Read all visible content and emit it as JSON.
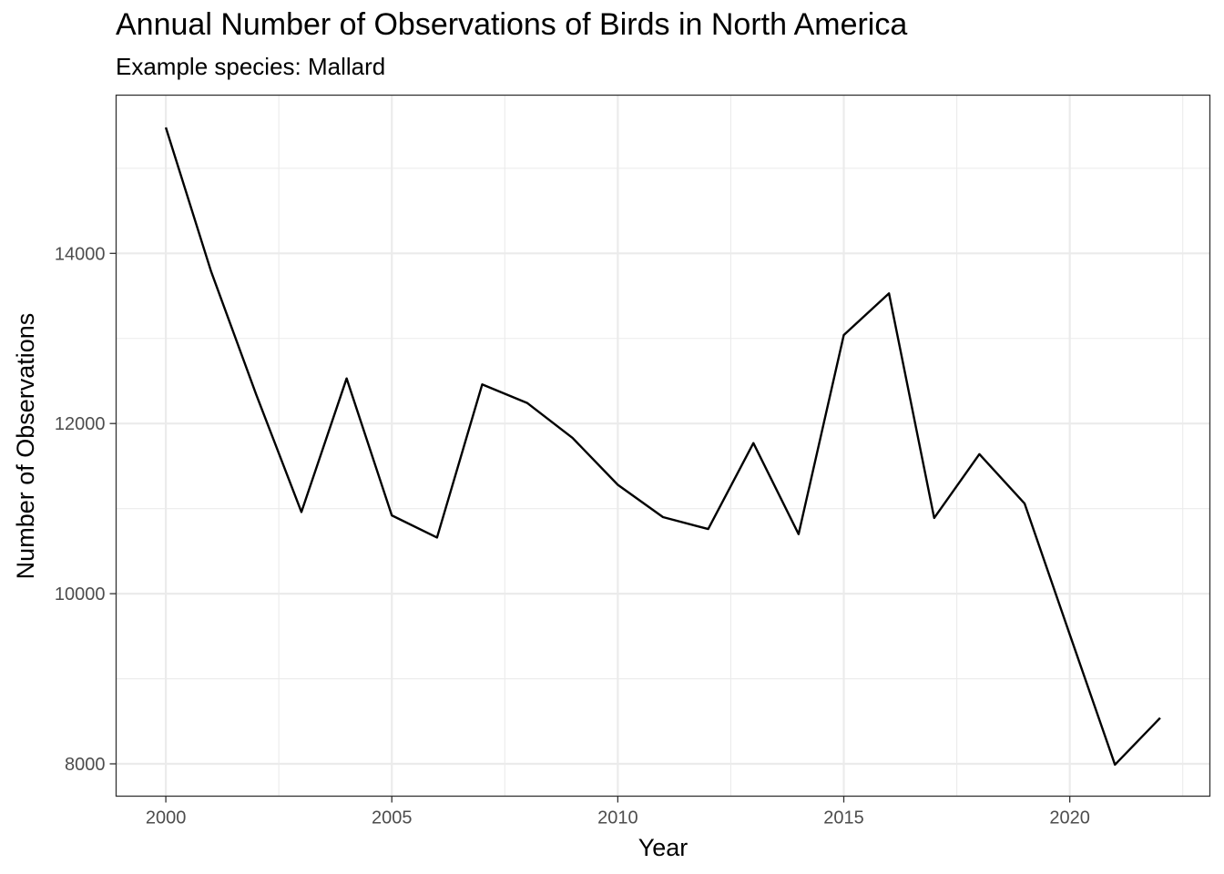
{
  "chart_data": {
    "type": "line",
    "title": "Annual Number of Observations of Birds in North America",
    "subtitle": "Example species: Mallard",
    "xlabel": "Year",
    "ylabel": "Number of Observations",
    "x": [
      2000,
      2001,
      2002,
      2003,
      2004,
      2005,
      2006,
      2007,
      2008,
      2009,
      2010,
      2011,
      2012,
      2013,
      2014,
      2015,
      2016,
      2017,
      2018,
      2019,
      2020,
      2021,
      2022
    ],
    "series": [
      {
        "values": [
          15480,
          13790,
          12340,
          10960,
          12530,
          10920,
          10660,
          12460,
          12240,
          11830,
          11280,
          10900,
          10760,
          11770,
          10700,
          13040,
          13530,
          10890,
          11640,
          11060,
          9520,
          7990,
          8540
        ],
        "color": "#000000"
      }
    ],
    "xticks": [
      2000,
      2005,
      2010,
      2015,
      2020
    ],
    "yticks": [
      8000,
      10000,
      12000,
      14000
    ],
    "xlim": [
      1998.9,
      2023.1
    ],
    "ylim": [
      7620,
      15860
    ],
    "grid": true,
    "gridColor": "#ebebeb",
    "legend": "none"
  }
}
